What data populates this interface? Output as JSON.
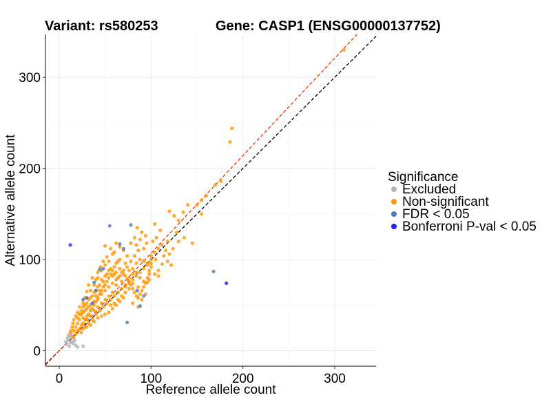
{
  "chart_data": {
    "type": "scatter",
    "title_left": "Variant: rs580253",
    "title_right": "Gene: CASP1 (ENSG00000137752)",
    "xlabel": "Reference allele count",
    "ylabel": "Alternative allele count",
    "xlim": [
      -15,
      345
    ],
    "ylim": [
      -17,
      347
    ],
    "xticks": [
      0,
      100,
      200,
      300
    ],
    "yticks": [
      0,
      100,
      200,
      300
    ],
    "grid": true,
    "legend": {
      "title": "Significance",
      "placement": "right",
      "entries": [
        {
          "label": "Excluded",
          "color": "#b3b3b3"
        },
        {
          "label": "Non-significant",
          "color": "#ff9500"
        },
        {
          "label": "FDR < 0.05",
          "color": "#4a78b8"
        },
        {
          "label": "Bonferroni P-val < 0.05",
          "color": "#1f1ff5"
        }
      ]
    },
    "reference_lines": [
      {
        "name": "identity",
        "style": "dashed",
        "color": "#000000",
        "slope": 1,
        "intercept": 0
      },
      {
        "name": "fitted",
        "style": "dashed",
        "color": "#ff2a00",
        "slope": 1.07,
        "intercept": 0
      }
    ],
    "series": [
      {
        "name": "Excluded",
        "color": "#b3b3b3",
        "points": [
          [
            8,
            7
          ],
          [
            10,
            12
          ],
          [
            12,
            16
          ],
          [
            14,
            10
          ],
          [
            11,
            5
          ],
          [
            16,
            14
          ],
          [
            9,
            14
          ],
          [
            13,
            18
          ],
          [
            15,
            8
          ],
          [
            18,
            6
          ],
          [
            20,
            4
          ],
          [
            26,
            5
          ],
          [
            7,
            10
          ],
          [
            12,
            9
          ],
          [
            17,
            11
          ],
          [
            10,
            17
          ],
          [
            14,
            15
          ]
        ]
      },
      {
        "name": "Non-significant",
        "color": "#ff9500",
        "points": [
          [
            310,
            330
          ],
          [
            188,
            244
          ],
          [
            186,
            229
          ],
          [
            176,
            186
          ],
          [
            170,
            182
          ],
          [
            160,
            170
          ],
          [
            155,
            165
          ],
          [
            150,
            160
          ],
          [
            155,
            150
          ],
          [
            140,
            160
          ],
          [
            135,
            152
          ],
          [
            130,
            143
          ],
          [
            125,
            148
          ],
          [
            120,
            153
          ],
          [
            128,
            130
          ],
          [
            145,
            118
          ],
          [
            118,
            120
          ],
          [
            110,
            132
          ],
          [
            104,
            139
          ],
          [
            90,
            130
          ],
          [
            85,
            135
          ],
          [
            84,
            116
          ],
          [
            100,
            104
          ],
          [
            95,
            118
          ],
          [
            92,
            112
          ],
          [
            105,
            100
          ],
          [
            98,
            88
          ],
          [
            112,
            95
          ],
          [
            108,
            82
          ],
          [
            100,
            92
          ],
          [
            96,
            75
          ],
          [
            86,
            70
          ],
          [
            80,
            74
          ],
          [
            76,
            80
          ],
          [
            72,
            96
          ],
          [
            66,
            100
          ],
          [
            60,
            108
          ],
          [
            56,
            112
          ],
          [
            50,
            115
          ],
          [
            52,
            103
          ],
          [
            48,
            98
          ],
          [
            45,
            92
          ],
          [
            42,
            86
          ],
          [
            40,
            78
          ],
          [
            36,
            80
          ],
          [
            32,
            72
          ],
          [
            30,
            65
          ],
          [
            28,
            58
          ],
          [
            26,
            52
          ],
          [
            22,
            48
          ],
          [
            20,
            42
          ],
          [
            18,
            38
          ],
          [
            16,
            34
          ],
          [
            15,
            30
          ],
          [
            14,
            26
          ],
          [
            13,
            22
          ],
          [
            12,
            20
          ],
          [
            15,
            15
          ],
          [
            18,
            18
          ],
          [
            20,
            22
          ],
          [
            22,
            24
          ],
          [
            24,
            28
          ],
          [
            26,
            30
          ],
          [
            28,
            34
          ],
          [
            30,
            38
          ],
          [
            32,
            40
          ],
          [
            34,
            44
          ],
          [
            36,
            46
          ],
          [
            38,
            50
          ],
          [
            40,
            54
          ],
          [
            42,
            58
          ],
          [
            44,
            62
          ],
          [
            46,
            66
          ],
          [
            48,
            70
          ],
          [
            50,
            72
          ],
          [
            52,
            76
          ],
          [
            54,
            80
          ],
          [
            56,
            84
          ],
          [
            58,
            88
          ],
          [
            60,
            92
          ],
          [
            62,
            96
          ],
          [
            64,
            98
          ],
          [
            66,
            90
          ],
          [
            68,
            86
          ],
          [
            70,
            84
          ],
          [
            72,
            82
          ],
          [
            74,
            78
          ],
          [
            76,
            76
          ],
          [
            78,
            72
          ],
          [
            80,
            68
          ],
          [
            82,
            64
          ],
          [
            84,
            60
          ],
          [
            86,
            58
          ],
          [
            88,
            62
          ],
          [
            90,
            66
          ],
          [
            92,
            70
          ],
          [
            94,
            74
          ],
          [
            96,
            80
          ],
          [
            98,
            84
          ],
          [
            62,
            72
          ],
          [
            58,
            64
          ],
          [
            54,
            60
          ],
          [
            50,
            56
          ],
          [
            46,
            52
          ],
          [
            42,
            48
          ],
          [
            38,
            44
          ],
          [
            34,
            38
          ],
          [
            30,
            34
          ],
          [
            26,
            36
          ],
          [
            24,
            40
          ],
          [
            28,
            44
          ],
          [
            32,
            48
          ],
          [
            36,
            52
          ],
          [
            40,
            60
          ],
          [
            44,
            66
          ],
          [
            48,
            76
          ],
          [
            52,
            84
          ],
          [
            56,
            90
          ],
          [
            60,
            84
          ],
          [
            64,
            80
          ],
          [
            68,
            76
          ],
          [
            72,
            72
          ],
          [
            76,
            68
          ],
          [
            80,
            90
          ],
          [
            84,
            96
          ],
          [
            88,
            100
          ],
          [
            92,
            98
          ],
          [
            96,
            96
          ],
          [
            100,
            100
          ],
          [
            104,
            108
          ],
          [
            108,
            112
          ],
          [
            112,
            116
          ],
          [
            116,
            110
          ],
          [
            120,
            106
          ],
          [
            124,
            112
          ],
          [
            74,
            104
          ],
          [
            70,
            110
          ],
          [
            66,
            114
          ],
          [
            62,
            118
          ],
          [
            58,
            106
          ],
          [
            54,
            98
          ],
          [
            50,
            94
          ],
          [
            46,
            88
          ],
          [
            42,
            80
          ],
          [
            38,
            72
          ],
          [
            34,
            66
          ],
          [
            30,
            58
          ],
          [
            26,
            48
          ],
          [
            22,
            40
          ],
          [
            20,
            30
          ],
          [
            24,
            20
          ],
          [
            28,
            26
          ],
          [
            32,
            30
          ],
          [
            36,
            34
          ],
          [
            40,
            40
          ],
          [
            44,
            44
          ],
          [
            48,
            48
          ],
          [
            52,
            52
          ],
          [
            56,
            56
          ],
          [
            60,
            60
          ],
          [
            64,
            64
          ],
          [
            68,
            68
          ],
          [
            72,
            70
          ],
          [
            76,
            74
          ],
          [
            80,
            78
          ],
          [
            84,
            82
          ],
          [
            88,
            86
          ],
          [
            92,
            90
          ],
          [
            96,
            94
          ],
          [
            100,
            96
          ],
          [
            70,
            58
          ],
          [
            66,
            54
          ],
          [
            62,
            50
          ],
          [
            58,
            46
          ],
          [
            54,
            42
          ],
          [
            50,
            40
          ],
          [
            46,
            38
          ],
          [
            42,
            36
          ],
          [
            38,
            32
          ],
          [
            34,
            28
          ],
          [
            30,
            26
          ],
          [
            26,
            24
          ],
          [
            86,
            110
          ],
          [
            82,
            104
          ],
          [
            78,
            98
          ],
          [
            74,
            92
          ],
          [
            70,
            88
          ],
          [
            66,
            82
          ],
          [
            62,
            78
          ],
          [
            58,
            74
          ],
          [
            54,
            70
          ],
          [
            50,
            66
          ],
          [
            46,
            62
          ],
          [
            42,
            56
          ],
          [
            38,
            54
          ],
          [
            34,
            50
          ],
          [
            30,
            46
          ],
          [
            26,
            42
          ],
          [
            78,
            118
          ],
          [
            82,
            124
          ],
          [
            88,
            122
          ],
          [
            94,
            126
          ],
          [
            102,
            120
          ],
          [
            106,
            124
          ],
          [
            114,
            104
          ],
          [
            118,
            98
          ],
          [
            122,
            94
          ],
          [
            108,
            88
          ],
          [
            104,
            84
          ],
          [
            98,
            78
          ],
          [
            92,
            76
          ],
          [
            88,
            80
          ],
          [
            84,
            86
          ],
          [
            80,
            84
          ],
          [
            76,
            88
          ],
          [
            72,
            64
          ],
          [
            68,
            60
          ],
          [
            64,
            56
          ],
          [
            60,
            52
          ],
          [
            56,
            50
          ],
          [
            44,
            72
          ],
          [
            40,
            66
          ],
          [
            36,
            60
          ],
          [
            32,
            56
          ],
          [
            28,
            50
          ],
          [
            24,
            44
          ],
          [
            20,
            36
          ],
          [
            18,
            26
          ],
          [
            16,
            22
          ],
          [
            22,
            34
          ],
          [
            90,
            56
          ],
          [
            94,
            62
          ],
          [
            86,
            48
          ],
          [
            80,
            52
          ],
          [
            130,
            120
          ],
          [
            136,
            124
          ],
          [
            62,
            86
          ],
          [
            58,
            82
          ],
          [
            54,
            88
          ],
          [
            50,
            82
          ],
          [
            46,
            78
          ],
          [
            42,
            70
          ],
          [
            38,
            64
          ],
          [
            34,
            58
          ],
          [
            30,
            52
          ]
        ]
      },
      {
        "name": "FDR < 0.05",
        "color": "#4a78b8",
        "points": [
          [
            55,
            137
          ],
          [
            78,
            138
          ],
          [
            66,
            117
          ],
          [
            70,
            112
          ],
          [
            48,
            90
          ],
          [
            44,
            89
          ],
          [
            38,
            75
          ],
          [
            40,
            66
          ],
          [
            30,
            58
          ],
          [
            26,
            56
          ],
          [
            36,
            52
          ],
          [
            168,
            87
          ],
          [
            74,
            31
          ],
          [
            88,
            49
          ],
          [
            85,
            66
          ],
          [
            92,
            60
          ]
        ]
      },
      {
        "name": "Bonferroni P-val < 0.05",
        "color": "#1f1ff5",
        "points": [
          [
            12,
            116
          ],
          [
            182,
            74
          ]
        ]
      }
    ]
  }
}
